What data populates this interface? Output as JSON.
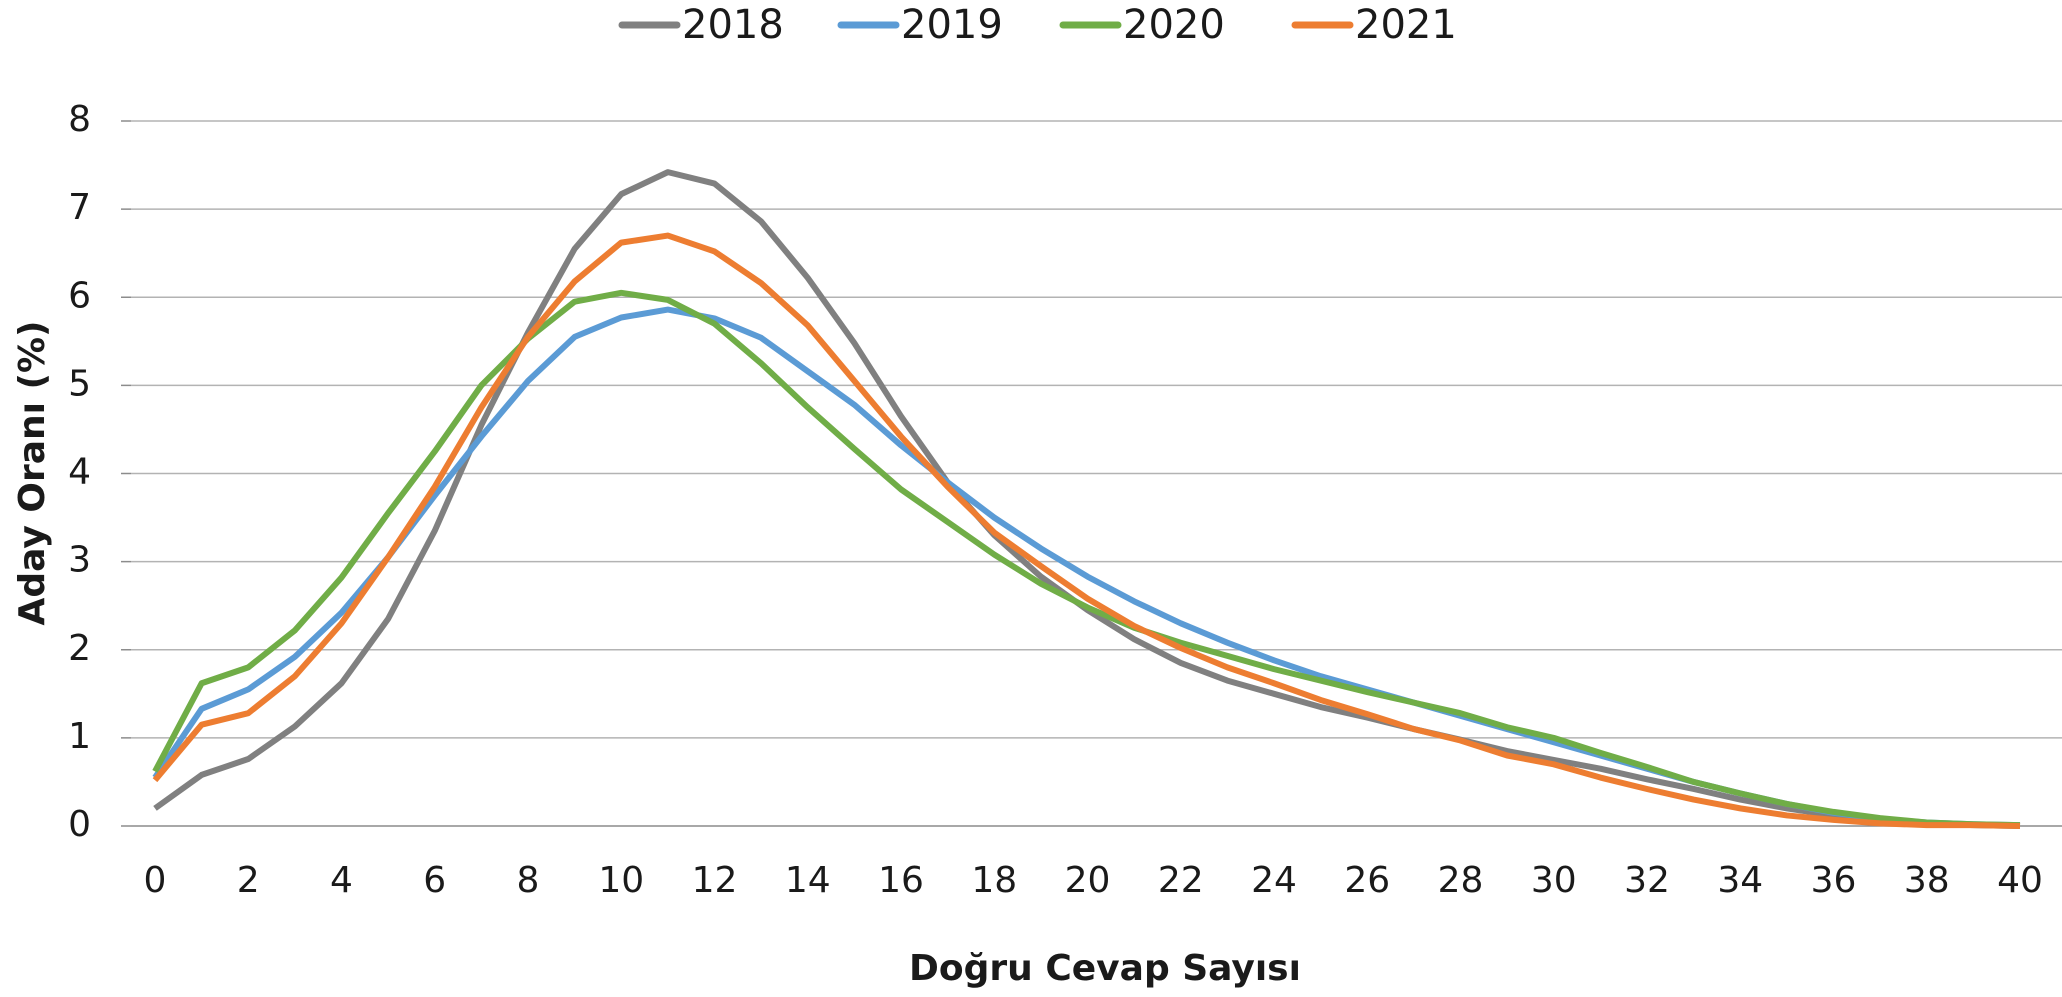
{
  "chart_data": {
    "type": "line",
    "x_label": "Doğru Cevap Sayısı",
    "y_label": "Aday Oranı (%)",
    "x": [
      0,
      1,
      2,
      3,
      4,
      5,
      6,
      7,
      8,
      9,
      10,
      11,
      12,
      13,
      14,
      15,
      16,
      17,
      18,
      19,
      20,
      21,
      22,
      23,
      24,
      25,
      26,
      27,
      28,
      29,
      30,
      31,
      32,
      33,
      34,
      35,
      36,
      37,
      38,
      39,
      40
    ],
    "xlim": [
      0,
      40
    ],
    "xticks": [
      0,
      2,
      4,
      6,
      8,
      10,
      12,
      14,
      16,
      18,
      20,
      22,
      24,
      26,
      28,
      30,
      32,
      34,
      36,
      38,
      40
    ],
    "ylim": [
      0,
      8
    ],
    "yticks": [
      0,
      1,
      2,
      3,
      4,
      5,
      6,
      7,
      8
    ],
    "grid": true,
    "legend": "top",
    "series": [
      {
        "name": "2018",
        "color": "#808080",
        "values": [
          0.2,
          0.58,
          0.76,
          1.13,
          1.62,
          2.35,
          3.35,
          4.55,
          5.6,
          6.55,
          7.17,
          7.42,
          7.29,
          6.86,
          6.22,
          5.48,
          4.65,
          3.9,
          3.3,
          2.83,
          2.45,
          2.12,
          1.85,
          1.65,
          1.5,
          1.35,
          1.23,
          1.1,
          0.98,
          0.85,
          0.75,
          0.65,
          0.53,
          0.42,
          0.3,
          0.2,
          0.12,
          0.06,
          0.03,
          0.01,
          0
        ]
      },
      {
        "name": "2019",
        "color": "#5b9bd5",
        "values": [
          0.55,
          1.33,
          1.55,
          1.92,
          2.42,
          3.05,
          3.75,
          4.42,
          5.05,
          5.55,
          5.77,
          5.86,
          5.76,
          5.54,
          5.16,
          4.78,
          4.32,
          3.9,
          3.5,
          3.15,
          2.83,
          2.55,
          2.3,
          2.08,
          1.88,
          1.7,
          1.55,
          1.4,
          1.25,
          1.1,
          0.95,
          0.8,
          0.65,
          0.5,
          0.37,
          0.25,
          0.15,
          0.08,
          0.04,
          0.02,
          0.01
        ]
      },
      {
        "name": "2020",
        "color": "#70ad47",
        "values": [
          0.62,
          1.62,
          1.8,
          2.22,
          2.82,
          3.55,
          4.25,
          5.0,
          5.53,
          5.95,
          6.05,
          5.97,
          5.7,
          5.25,
          4.75,
          4.28,
          3.82,
          3.45,
          3.08,
          2.75,
          2.48,
          2.25,
          2.08,
          1.93,
          1.78,
          1.65,
          1.52,
          1.4,
          1.28,
          1.12,
          1.0,
          0.83,
          0.67,
          0.5,
          0.37,
          0.25,
          0.16,
          0.09,
          0.04,
          0.02,
          0.01
        ]
      },
      {
        "name": "2021",
        "color": "#ed7d31",
        "values": [
          0.52,
          1.15,
          1.28,
          1.7,
          2.3,
          3.05,
          3.85,
          4.75,
          5.55,
          6.18,
          6.62,
          6.7,
          6.52,
          6.16,
          5.68,
          5.05,
          4.42,
          3.85,
          3.33,
          2.95,
          2.58,
          2.27,
          2.02,
          1.8,
          1.62,
          1.43,
          1.27,
          1.1,
          0.97,
          0.8,
          0.7,
          0.55,
          0.42,
          0.3,
          0.2,
          0.12,
          0.07,
          0.03,
          0.01,
          0.01,
          0
        ]
      }
    ]
  }
}
